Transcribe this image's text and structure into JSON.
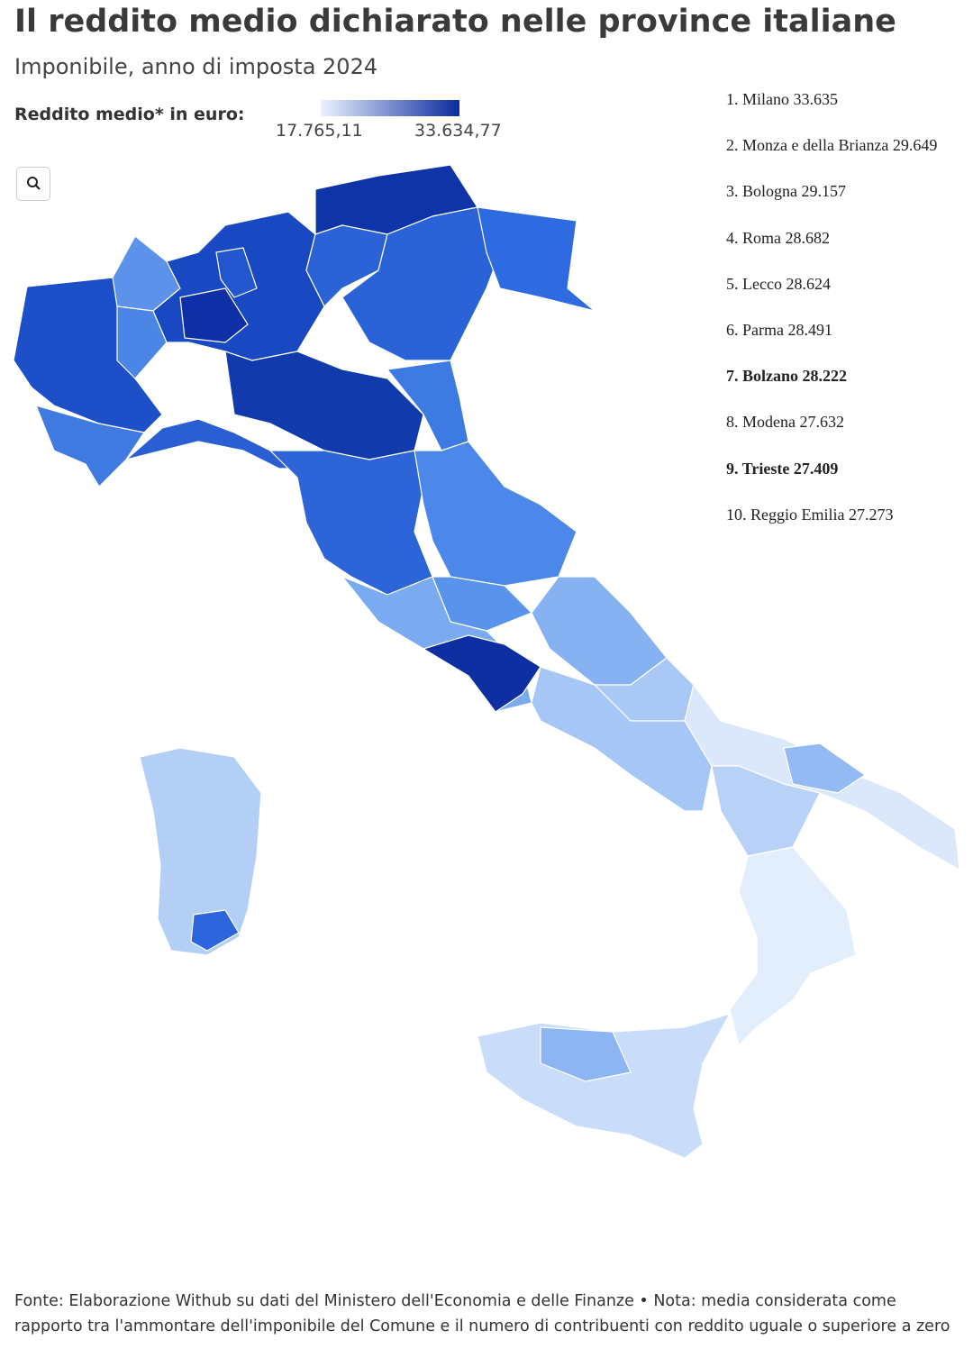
{
  "header": {
    "title": "Il reddito medio dichiarato nelle province italiane",
    "subtitle": "Imponibile, anno di imposta 2024"
  },
  "legend": {
    "label": "Reddito medio* in euro:",
    "min_label": "17.765,11",
    "max_label": "33.634,77",
    "min_color": "#eaf2fe",
    "max_color": "#0b2b9e"
  },
  "ranking": [
    {
      "text": "1. Milano 33.635",
      "bold": false
    },
    {
      "text": "2. Monza e della Brianza 29.649",
      "bold": false
    },
    {
      "text": "3. Bologna 29.157",
      "bold": false
    },
    {
      "text": "4. Roma 28.682",
      "bold": false
    },
    {
      "text": "5. Lecco 28.624",
      "bold": false
    },
    {
      "text": "6. Parma 28.491",
      "bold": false
    },
    {
      "text": "7. Bolzano 28.222",
      "bold": true
    },
    {
      "text": "8. Modena 27.632",
      "bold": false
    },
    {
      "text": "9. Trieste 27.409",
      "bold": true
    },
    {
      "text": "10. Reggio Emilia 27.273",
      "bold": false
    }
  ],
  "footer": {
    "note": "Fonte: Elaborazione Withub su dati del Ministero dell'Economia e delle Finanze • Nota: media considerata come rapporto tra l'ammontare dell'imponibile del Comune e il numero di contribuenti con reddito uguale o superiore a zero"
  }
}
